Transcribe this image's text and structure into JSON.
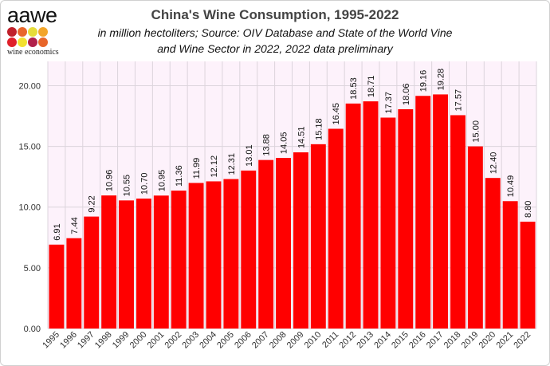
{
  "logo": {
    "word": "aawe",
    "tagline": "wine economics",
    "dot_colors": [
      "#c0202a",
      "#e8662a",
      "#e6dc3a",
      "#f2a52a",
      "#e0202a",
      "#f2e030",
      "#b0204a",
      "#e8662a"
    ]
  },
  "chart_data": {
    "type": "bar",
    "title": "China's Wine Consumption, 1995-2022",
    "subtitle_lines": [
      "in million hectoliters; Source: OIV Database and State of the World Vine",
      "and Wine Sector in 2022, 2022 data preliminary"
    ],
    "xlabel": "",
    "ylabel": "",
    "categories": [
      "1995",
      "1996",
      "1997",
      "1998",
      "1999",
      "2000",
      "2001",
      "2002",
      "2003",
      "2004",
      "2005",
      "2006",
      "2007",
      "2008",
      "2009",
      "2010",
      "2011",
      "2012",
      "2013",
      "2014",
      "2015",
      "2016",
      "2017",
      "2018",
      "2019",
      "2020",
      "2021",
      "2022"
    ],
    "values": [
      6.91,
      7.44,
      9.22,
      10.96,
      10.55,
      10.7,
      10.95,
      11.36,
      11.99,
      12.12,
      12.31,
      13.01,
      13.88,
      14.05,
      14.51,
      15.18,
      16.45,
      18.53,
      18.71,
      17.37,
      18.06,
      19.16,
      19.28,
      17.57,
      15.0,
      12.4,
      10.49,
      8.8
    ],
    "ylim": [
      0,
      22
    ],
    "yticks": [
      "0.00",
      "5.00",
      "10.00",
      "15.00",
      "20.00"
    ],
    "grid": true,
    "bar_color": "#ff0000",
    "plot_background": "#fdf2fb",
    "grid_color": "#dcd4dc"
  }
}
